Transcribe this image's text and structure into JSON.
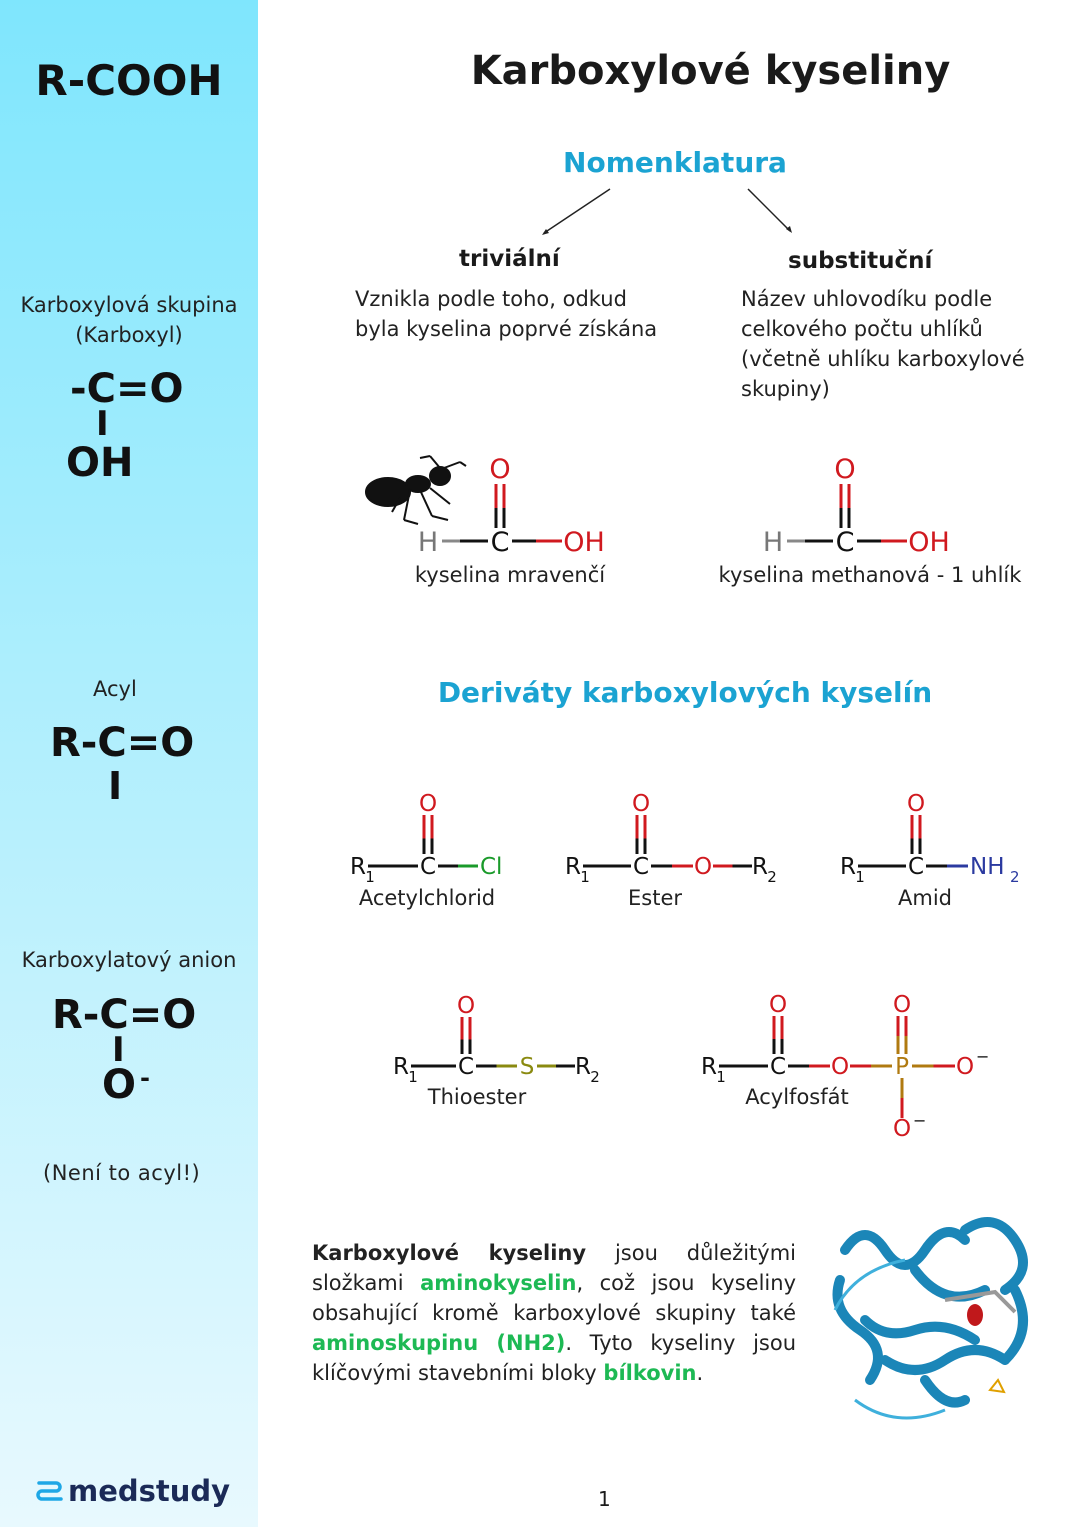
{
  "sidebar": {
    "formula_title": "R-COOH",
    "carboxyl_label": "Karboxylová skupina",
    "carboxyl_label2": "(Karboxyl)",
    "carboxyl_formula": [
      "-C=O",
      "I",
      "OH"
    ],
    "acyl_label": "Acyl",
    "acyl_formula": [
      "R-C=O",
      "I"
    ],
    "anion_label": "Karboxylatový anion",
    "anion_formula": [
      "R-C=O",
      "I",
      "O",
      "-"
    ],
    "note": "(Není to acyl!)",
    "logo": "medstudy"
  },
  "main": {
    "title": "Karboxylové kyseliny",
    "nomenclature": "Nomenklatura",
    "trivial": {
      "title": "triviální",
      "text": [
        "Vznikla podle toho, odkud",
        "byla kyselina poprvé získána"
      ]
    },
    "substitution": {
      "title": "substituční",
      "text": [
        "Název uhlovodíku podle",
        "celkového počtu uhlíků",
        "(včetně uhlíku karboxylové",
        "skupiny)"
      ]
    },
    "formic": {
      "atoms": {
        "O": "O",
        "C": "C",
        "H": "H",
        "OH": "OH"
      },
      "caption1": "kyselina mravenčí",
      "caption2": "kyselina methanová - 1 uhlík"
    },
    "derivatives_title": "Deriváty karboxylových kyselín",
    "atoms": {
      "R": "R",
      "one": "1",
      "two": "2",
      "C": "C",
      "O": "O",
      "Cl": "Cl",
      "NH": "NH",
      "S": "S",
      "P": "P",
      "minus": "−"
    },
    "derivatives": [
      "Acetylchlorid",
      "Ester",
      "Amid",
      "Thioester",
      "Acylfosfát"
    ],
    "paragraph": {
      "p1": "Karboxylové kyseliny",
      "p2": " jsou důležitými složkami ",
      "p3": "aminokyselin",
      "p4": ", což jsou kyseliny obsahující kromě karboxylové skupiny také ",
      "p5": "aminoskupinu (NH2)",
      "p6": ". Tyto kyseliny jsou klíčovými stavebními bloky ",
      "p7": "bílkovin",
      "p8": "."
    },
    "page_number": "1"
  },
  "colors": {
    "accent": "#1ba3d2",
    "green": "#1db954",
    "oxygen": "#d0191f",
    "chlorine": "#1a9a2a",
    "nitrogen": "#2b3aa0",
    "sulfur": "#8a8a10",
    "phosphorus": "#b07a10",
    "logo": "#1b2a57"
  }
}
